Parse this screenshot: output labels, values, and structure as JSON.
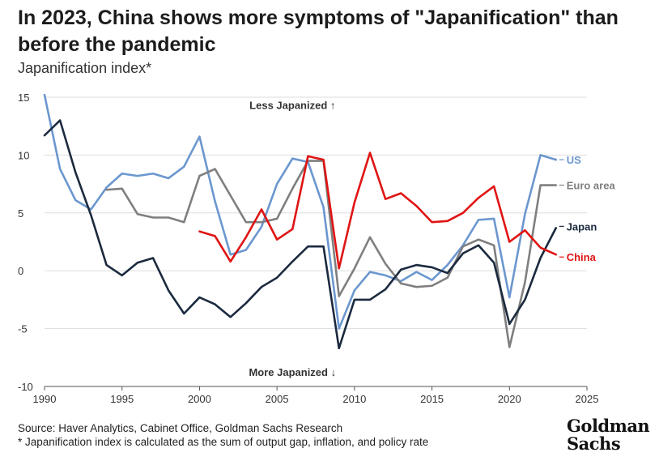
{
  "title": "In 2023, China shows more symptoms of \"Japanification\" than before the pandemic",
  "subtitle": "Japanification index*",
  "source": "Source: Haver Analytics, Cabinet Office, Goldman Sachs Research",
  "footnote": "* Japanification index is calculated as the sum of output gap, inflation, and policy rate",
  "logo": {
    "line1": "Goldman",
    "line2": "Sachs"
  },
  "chart_data": {
    "type": "line",
    "title": "In 2023, China shows more symptoms of \"Japanification\" than before the pandemic",
    "ylabel": "Japanification index*",
    "xlim": [
      1990,
      2025
    ],
    "ylim": [
      -10,
      15
    ],
    "xticks": [
      1990,
      1995,
      2000,
      2005,
      2010,
      2015,
      2020,
      2025
    ],
    "yticks": [
      -10,
      -5,
      0,
      5,
      10,
      15
    ],
    "grid": true,
    "legend": "inline labels at right end of lines",
    "annotations": [
      {
        "text": "Less Japanized ↑",
        "x": 2006,
        "y": 14
      },
      {
        "text": "More Japanized ↓",
        "x": 2006,
        "y": -9.1
      }
    ],
    "series": [
      {
        "name": "US",
        "color": "#6b97cf",
        "x": [
          1990,
          1991,
          1992,
          1993,
          1994,
          1995,
          1996,
          1997,
          1998,
          1999,
          2000,
          2001,
          2002,
          2003,
          2004,
          2005,
          2006,
          2007,
          2008,
          2009,
          2010,
          2011,
          2012,
          2013,
          2014,
          2015,
          2016,
          2017,
          2018,
          2019,
          2020,
          2021,
          2022,
          2023
        ],
        "y": [
          15.2,
          8.8,
          6.1,
          5.3,
          7.2,
          8.4,
          8.2,
          8.4,
          8.0,
          9.0,
          11.6,
          6.0,
          1.4,
          1.8,
          3.8,
          7.5,
          9.7,
          9.4,
          5.5,
          -5.0,
          -1.7,
          -0.1,
          -0.4,
          -0.9,
          -0.1,
          -0.8,
          0.5,
          2.2,
          4.4,
          4.5,
          -2.3,
          4.9,
          10.0,
          9.6
        ]
      },
      {
        "name": "Euro area",
        "color": "#7f7f7f",
        "x": [
          1994,
          1995,
          1996,
          1997,
          1998,
          1999,
          2000,
          2001,
          2002,
          2003,
          2004,
          2005,
          2006,
          2007,
          2008,
          2009,
          2010,
          2011,
          2012,
          2013,
          2014,
          2015,
          2016,
          2017,
          2018,
          2019,
          2020,
          2021,
          2022,
          2023
        ],
        "y": [
          7.0,
          7.1,
          4.9,
          4.6,
          4.6,
          4.2,
          8.2,
          8.8,
          6.5,
          4.2,
          4.2,
          4.5,
          7.1,
          9.5,
          9.5,
          -2.2,
          0.2,
          2.9,
          0.6,
          -1.1,
          -1.4,
          -1.3,
          -0.6,
          2.1,
          2.7,
          2.2,
          -6.6,
          -1.0,
          7.4,
          7.4
        ]
      },
      {
        "name": "Japan",
        "color": "#1b2a3f",
        "x": [
          1990,
          1991,
          1992,
          1993,
          1994,
          1995,
          1996,
          1997,
          1998,
          1999,
          2000,
          2001,
          2002,
          2003,
          2004,
          2005,
          2006,
          2007,
          2008,
          2009,
          2010,
          2011,
          2012,
          2013,
          2014,
          2015,
          2016,
          2017,
          2018,
          2019,
          2020,
          2021,
          2022,
          2023
        ],
        "y": [
          11.7,
          13.0,
          8.5,
          4.8,
          0.5,
          -0.4,
          0.7,
          1.1,
          -1.7,
          -3.7,
          -2.3,
          -2.9,
          -4.0,
          -2.8,
          -1.4,
          -0.6,
          0.8,
          2.1,
          2.1,
          -6.7,
          -2.5,
          -2.5,
          -1.6,
          0.1,
          0.5,
          0.3,
          -0.2,
          1.5,
          2.2,
          0.7,
          -4.6,
          -2.5,
          1.1,
          3.7
        ]
      },
      {
        "name": "China",
        "color": "#e01414",
        "x": [
          2000,
          2001,
          2002,
          2003,
          2004,
          2005,
          2006,
          2007,
          2008,
          2009,
          2010,
          2011,
          2012,
          2013,
          2014,
          2015,
          2016,
          2017,
          2018,
          2019,
          2020,
          2021,
          2022,
          2023
        ],
        "y": [
          3.4,
          3.0,
          0.8,
          2.9,
          5.3,
          2.7,
          3.6,
          9.9,
          9.6,
          0.2,
          5.9,
          10.2,
          6.2,
          6.7,
          5.6,
          4.2,
          4.3,
          5.0,
          6.3,
          7.3,
          2.5,
          3.5,
          2.0,
          1.4
        ]
      }
    ]
  }
}
